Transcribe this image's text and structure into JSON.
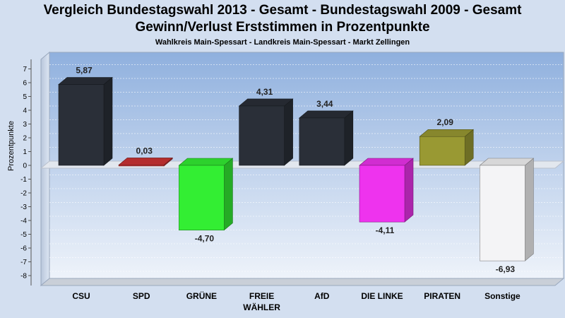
{
  "chart_data": {
    "type": "bar",
    "title": "Vergleich Bundestagswahl 2013 - Gesamt - Bundestagswahl 2009 - Gesamt",
    "title_line2": "Gewinn/Verlust Erststimmen in Prozentpunkte",
    "subtitle": "Wahlkreis Main-Spessart - Landkreis Main-Spessart - Markt Zellingen",
    "ylabel": "Prozentpunkte",
    "xlabel": "",
    "ylim": [
      -8,
      7
    ],
    "yticks": [
      "7",
      "6",
      "5",
      "4",
      "3",
      "2",
      "1",
      "0",
      "-1",
      "-2",
      "-3",
      "-4",
      "-5",
      "-6",
      "-7",
      "-8"
    ],
    "grid": true,
    "categories": [
      {
        "label": "CSU",
        "label2": ""
      },
      {
        "label": "SPD",
        "label2": ""
      },
      {
        "label": "GRÜNE",
        "label2": ""
      },
      {
        "label": "FREIE",
        "label2": "WÄHLER"
      },
      {
        "label": "AfD",
        "label2": ""
      },
      {
        "label": "DIE LINKE",
        "label2": ""
      },
      {
        "label": "PIRATEN",
        "label2": ""
      },
      {
        "label": "Sonstige",
        "label2": ""
      }
    ],
    "values": [
      5.87,
      0.03,
      -4.7,
      4.31,
      3.44,
      -4.11,
      2.09,
      -6.93
    ],
    "value_labels": [
      "5,87",
      "0,03",
      "-4,70",
      "4,31",
      "3,44",
      "-4,11",
      "2,09",
      "-6,93"
    ],
    "colors": [
      "#2a2f38",
      "#cc3333",
      "#33ee33",
      "#2a2f38",
      "#2a2f38",
      "#ee33ee",
      "#999933",
      "#f4f4f6"
    ]
  }
}
